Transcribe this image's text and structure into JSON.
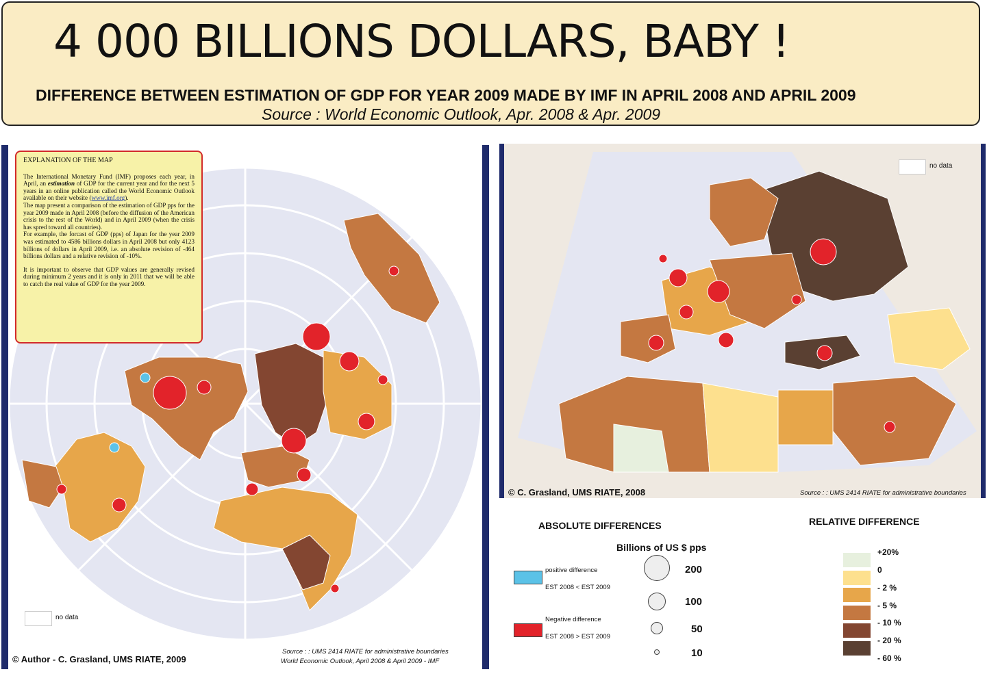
{
  "header": {
    "title": "4 000 BILLIONS DOLLARS, BABY !",
    "subtitle": "DIFFERENCE BETWEEN ESTIMATION OF GDP FOR YEAR 2009 MADE BY IMF IN APRIL 2008 AND APRIL 2009",
    "source": "Source : World Economic Outlook, Apr. 2008 & Apr. 2009"
  },
  "explanation": {
    "heading": "EXPLANATION  OF THE MAP",
    "p1a": "The International Monetary Fund (IMF) proposes each year, in April, an ",
    "p1_em": "estimation",
    "p1b": " of GDP for the current year and for the next 5 years in an online publication called the World Economic Outlook available on their website (",
    "link": "www.imf.org",
    "p1c": ").",
    "p2": "The map present a comparison of the estimation of GDP pps for the year 2009 made in April 2008 (before the diffusion of the American crisis to the rest of the World) and in April 2009 (when the crisis has spred toward  all countries).",
    "p3": "For example, the forcast of GDP (pps)  of Japan for  the year 2009 was estimated to 4586 billions dollars in April 2008 but only 4123 billions of dollars in April 2009, i.e. an absolute revision of -464 billions dollars and a relative revision of -10%.",
    "p4": "It is important to observe that GDP values are generally revised during minimum 2 years and it is only in 2011 that we will be able to catch the real value of GDP for the year 2009."
  },
  "left_map": {
    "nodata_label": "no data",
    "credit": "© Author - C. Grasland, UMS RIATE, 2009",
    "source_line1": "Source : : UMS 2414 RIATE for administrative boundaries",
    "source_line2": "World Economic Outlook, April 2008 & April 2009 - IMF"
  },
  "right_map": {
    "nodata_label": "no data",
    "credit": "© C. Grasland,  UMS RIATE, 2008",
    "source": "Source : : UMS 2414 RIATE for administrative boundaries"
  },
  "legend_absolute": {
    "title": "ABSOLUTE DIFFERENCES",
    "unit": "Billions of US $ pps",
    "positive_label": "positive difference",
    "positive_desc": "EST 2008 < EST 2009",
    "negative_label": "Negative difference",
    "negative_desc": "EST 2008 > EST 2009",
    "sizes": [
      "200",
      "100",
      "50",
      "10"
    ],
    "positive_color": "#5bc2e7",
    "negative_color": "#e2232a"
  },
  "legend_relative": {
    "title": "RELATIVE DIFFERENCE",
    "classes": [
      {
        "label": "+20%",
        "color": "#e7f0de"
      },
      {
        "label": "0",
        "color": "#fde08e"
      },
      {
        "label": "- 2 %",
        "color": "#e7a64a"
      },
      {
        "label": "- 5 %",
        "color": "#c47841"
      },
      {
        "label": "- 10 %",
        "color": "#834631"
      },
      {
        "label": "- 20 %",
        "color": "#5a4032"
      },
      {
        "label": "- 60 %",
        "color": ""
      }
    ]
  }
}
